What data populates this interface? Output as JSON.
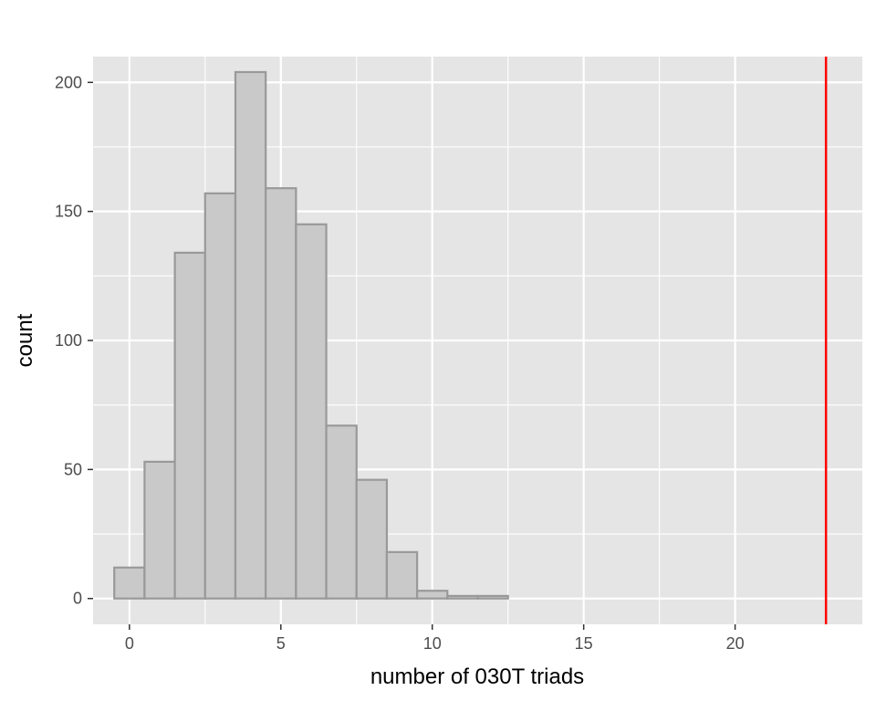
{
  "chart_data": {
    "type": "bar",
    "xlabel": "number of 030T triads",
    "ylabel": "count",
    "x_ticks": [
      0,
      5,
      10,
      15,
      20
    ],
    "y_ticks": [
      0,
      50,
      100,
      150,
      200
    ],
    "xlim": [
      -1.2,
      24.2
    ],
    "ylim": [
      -10,
      210
    ],
    "bin_width": 1,
    "bins": [
      {
        "x": 0,
        "count": 12
      },
      {
        "x": 1,
        "count": 53
      },
      {
        "x": 2,
        "count": 134
      },
      {
        "x": 3,
        "count": 157
      },
      {
        "x": 4,
        "count": 204
      },
      {
        "x": 5,
        "count": 159
      },
      {
        "x": 6,
        "count": 145
      },
      {
        "x": 7,
        "count": 67
      },
      {
        "x": 8,
        "count": 46
      },
      {
        "x": 9,
        "count": 18
      },
      {
        "x": 10,
        "count": 3
      },
      {
        "x": 11,
        "count": 1
      },
      {
        "x": 12,
        "count": 1
      },
      {
        "x": 13,
        "count": 0
      },
      {
        "x": 14,
        "count": 0
      },
      {
        "x": 15,
        "count": 0
      },
      {
        "x": 16,
        "count": 0
      },
      {
        "x": 17,
        "count": 0
      },
      {
        "x": 18,
        "count": 0
      },
      {
        "x": 19,
        "count": 0
      },
      {
        "x": 20,
        "count": 0
      },
      {
        "x": 21,
        "count": 0
      },
      {
        "x": 22,
        "count": 0
      },
      {
        "x": 23,
        "count": 0
      }
    ],
    "reference_line": {
      "x": 23,
      "color": "#ff0000"
    },
    "colors": {
      "panel": "#e5e5e5",
      "grid": "#ffffff",
      "bar_fill": "#c9c9c9",
      "bar_stroke": "#999999"
    },
    "grid": true
  }
}
